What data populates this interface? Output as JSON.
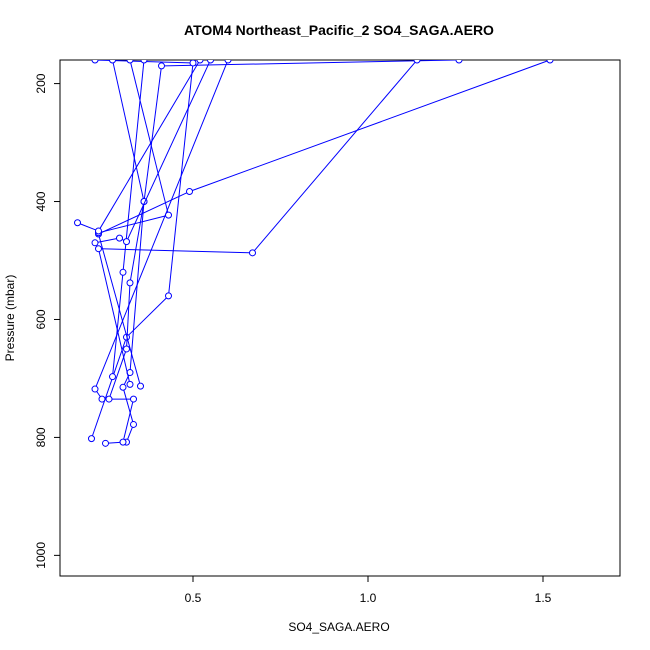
{
  "chart_data": {
    "type": "line",
    "title": "ATOM4 Northeast_Pacific_2 SO4_SAGA.AERO",
    "xlabel": "SO4_SAGA.AERO",
    "ylabel": "Pressure (mbar)",
    "xlim": [
      0.12,
      1.72
    ],
    "ylim": [
      1035,
      160
    ],
    "y_reversed": true,
    "x_ticks": [
      0.5,
      1.0,
      1.5
    ],
    "x_tick_labels": [
      "0.5",
      "1.0",
      "1.5"
    ],
    "y_ticks": [
      200,
      400,
      600,
      800,
      1000
    ],
    "y_tick_labels": [
      "200",
      "400",
      "600",
      "800",
      "1000"
    ],
    "grid": false,
    "line_color": "#0000ff",
    "marker": "open-circle",
    "series": [
      {
        "points": [
          [
            0.31,
            808
          ],
          [
            0.33,
            778
          ],
          [
            0.3,
            715
          ],
          [
            0.32,
            690
          ],
          [
            0.36,
            400
          ],
          [
            0.41,
            170
          ],
          [
            1.26,
            160
          ]
        ]
      },
      {
        "points": [
          [
            0.25,
            810
          ],
          [
            0.3,
            808
          ],
          [
            0.33,
            735
          ],
          [
            0.24,
            735
          ],
          [
            0.22,
            718
          ],
          [
            0.6,
            160
          ]
        ]
      },
      {
        "points": [
          [
            0.21,
            802
          ],
          [
            0.31,
            630
          ],
          [
            0.43,
            560
          ],
          [
            0.5,
            165
          ],
          [
            0.22,
            160
          ]
        ]
      },
      {
        "points": [
          [
            0.26,
            735
          ],
          [
            0.31,
            650
          ],
          [
            0.32,
            538
          ],
          [
            0.36,
            400
          ],
          [
            0.27,
            160
          ]
        ]
      },
      {
        "points": [
          [
            0.32,
            710
          ],
          [
            0.23,
            480
          ],
          [
            0.67,
            487
          ],
          [
            1.14,
            160
          ]
        ]
      },
      {
        "points": [
          [
            0.35,
            713
          ],
          [
            0.23,
            455
          ],
          [
            0.49,
            383
          ],
          [
            1.52,
            160
          ]
        ]
      },
      {
        "points": [
          [
            0.27,
            697
          ],
          [
            0.3,
            520
          ],
          [
            0.36,
            160
          ]
        ]
      },
      {
        "points": [
          [
            0.23,
            453
          ],
          [
            0.43,
            423
          ],
          [
            0.32,
            160
          ]
        ]
      },
      {
        "points": [
          [
            0.17,
            436
          ],
          [
            0.23,
            450
          ],
          [
            0.52,
            160
          ]
        ]
      },
      {
        "points": [
          [
            0.22,
            470
          ],
          [
            0.29,
            462
          ],
          [
            0.31,
            468
          ],
          [
            0.55,
            160
          ]
        ]
      }
    ]
  }
}
